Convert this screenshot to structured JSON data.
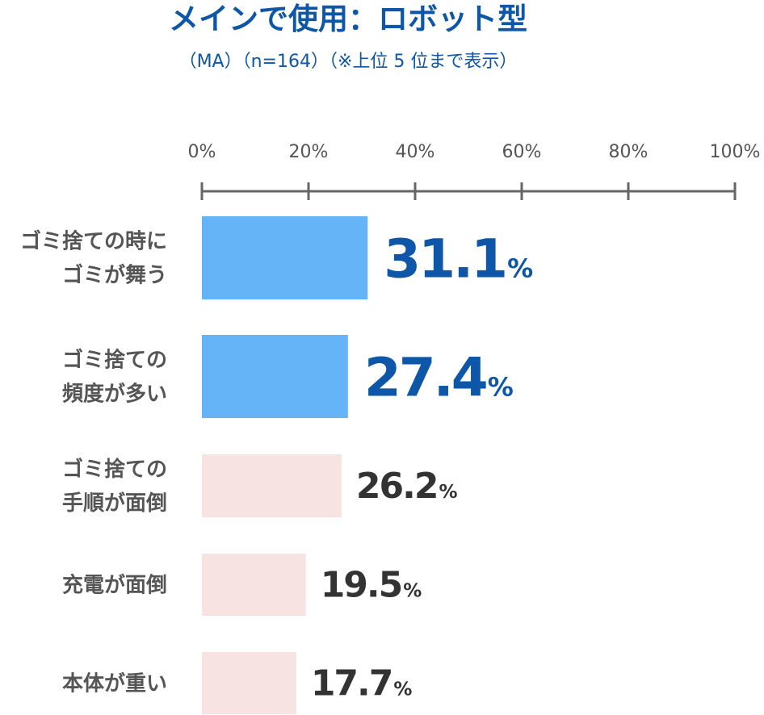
{
  "title": "メインで使用：ロボット型",
  "subtitle": "（MA）（n=164）（※上位 5 位まで表示）",
  "colors": {
    "title": "#0e57a8",
    "highlight_bar": "#64b4f7",
    "normal_bar": "#f7e3e1",
    "highlight_value": "#0e57a8",
    "normal_value": "#333333",
    "label": "#555555",
    "axis": "#666666"
  },
  "chart_data": {
    "type": "bar",
    "orientation": "horizontal",
    "xlim": [
      0,
      100
    ],
    "ticks": [
      {
        "value": 0,
        "label": "0%"
      },
      {
        "value": 20,
        "label": "20%"
      },
      {
        "value": 40,
        "label": "40%"
      },
      {
        "value": 60,
        "label": "60%"
      },
      {
        "value": 80,
        "label": "80%"
      },
      {
        "value": 100,
        "label": "100%"
      }
    ],
    "value_unit": "%",
    "categories": [
      {
        "label_lines": [
          "ゴミ捨ての時に",
          "ゴミが舞う"
        ],
        "value": 31.1,
        "value_label": "31.1",
        "highlight": true
      },
      {
        "label_lines": [
          "ゴミ捨ての",
          "頻度が多い"
        ],
        "value": 27.4,
        "value_label": "27.4",
        "highlight": true
      },
      {
        "label_lines": [
          "ゴミ捨ての",
          "手順が面倒"
        ],
        "value": 26.2,
        "value_label": "26.2",
        "highlight": false
      },
      {
        "label_lines": [
          "充電が面倒"
        ],
        "value": 19.5,
        "value_label": "19.5",
        "highlight": false
      },
      {
        "label_lines": [
          "本体が重い"
        ],
        "value": 17.7,
        "value_label": "17.7",
        "highlight": false
      }
    ]
  }
}
